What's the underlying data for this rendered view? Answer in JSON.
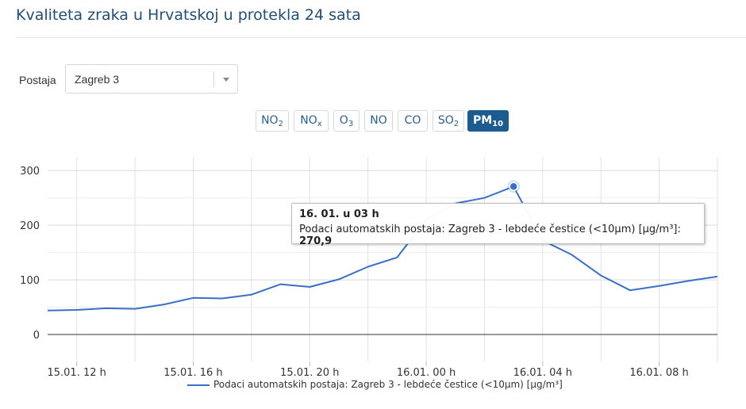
{
  "header": {
    "title": "Kvaliteta zraka u Hrvatskoj u protekla 24 sata"
  },
  "station": {
    "label": "Postaja",
    "selected": "Zagreb 3"
  },
  "pollutants": [
    {
      "base": "NO",
      "sub": "2",
      "active": false
    },
    {
      "base": "NO",
      "sub": "x",
      "active": false
    },
    {
      "base": "O",
      "sub": "3",
      "active": false
    },
    {
      "base": "NO",
      "sub": "",
      "active": false
    },
    {
      "base": "CO",
      "sub": "",
      "active": false
    },
    {
      "base": "SO",
      "sub": "2",
      "active": false
    },
    {
      "base": "PM",
      "sub": "10",
      "active": true
    }
  ],
  "tooltip": {
    "date": "16. 01. u 03 h",
    "series": "Podaci automatskih postaja: Zagreb 3 - lebdeće čestice (<10μm) [μg/m³]",
    "value": "270,9"
  },
  "chart_data": {
    "type": "line",
    "ylim": [
      0,
      300
    ],
    "yticks": [
      0,
      100,
      200,
      300
    ],
    "xticks": [
      {
        "t": 12,
        "label": "15.01. 12 h"
      },
      {
        "t": 16,
        "label": "15.01. 16 h"
      },
      {
        "t": 20,
        "label": "15.01. 20 h"
      },
      {
        "t": 24,
        "label": "16.01. 00 h"
      },
      {
        "t": 28,
        "label": "16.01. 04 h"
      },
      {
        "t": 32,
        "label": "16.01. 08 h"
      }
    ],
    "series": [
      {
        "name": "Podaci automatskih postaja: Zagreb 3 - lebdeće čestice (<10μm) [μg/m³]",
        "color": "#3a6fc8",
        "x": [
          11,
          12,
          13,
          14,
          15,
          16,
          17,
          18,
          19,
          20,
          21,
          22,
          23,
          24,
          25,
          26,
          27,
          28,
          29,
          30,
          31,
          32,
          33,
          34
        ],
        "y": [
          44,
          45,
          48,
          47,
          55,
          67,
          66,
          73,
          92,
          87,
          101,
          124,
          141,
          210,
          240,
          250,
          270.9,
          172,
          146,
          108,
          81,
          89,
          98,
          106
        ]
      }
    ],
    "highlight_index": 16
  }
}
